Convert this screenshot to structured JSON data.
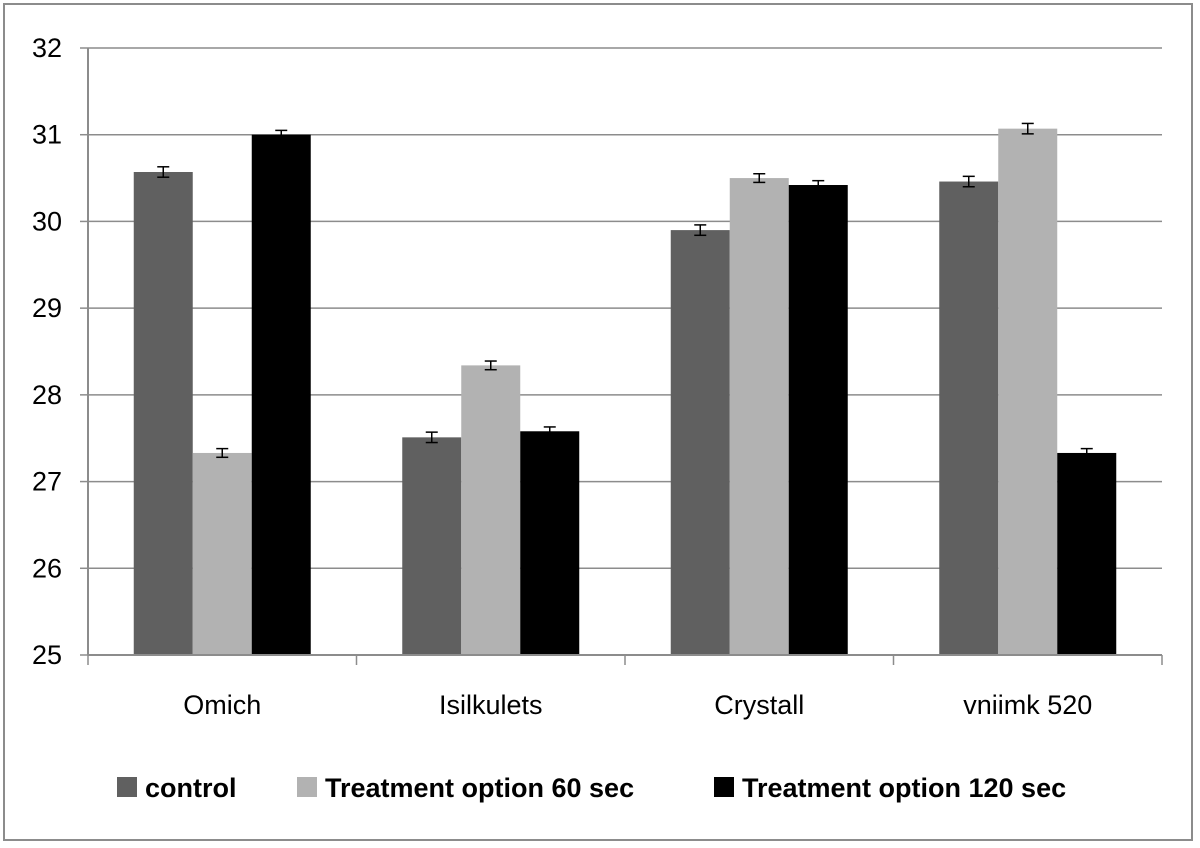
{
  "chart_data": {
    "type": "bar",
    "title": "",
    "xlabel": "",
    "ylabel": "",
    "ylim": [
      25,
      32
    ],
    "yticks": [
      "25",
      "26",
      "27",
      "28",
      "29",
      "30",
      "31",
      "32"
    ],
    "grid": true,
    "legend_position": "bottom",
    "categories": [
      "Omich",
      "Isilkulets",
      "Crystall",
      "vniimk 520"
    ],
    "series": [
      {
        "name": "control",
        "color": "#606060",
        "values": [
          30.57,
          27.51,
          29.9,
          30.46
        ],
        "errors": [
          0.06,
          0.06,
          0.06,
          0.06
        ]
      },
      {
        "name": "Treatment option 60 sec",
        "color": "#b2b2b2",
        "values": [
          27.33,
          28.34,
          30.5,
          31.07
        ],
        "errors": [
          0.05,
          0.05,
          0.05,
          0.06
        ]
      },
      {
        "name": "Treatment option 120 sec",
        "color": "#000000",
        "values": [
          31.0,
          27.58,
          30.42,
          27.33
        ],
        "errors": [
          0.05,
          0.05,
          0.05,
          0.05
        ]
      }
    ]
  }
}
